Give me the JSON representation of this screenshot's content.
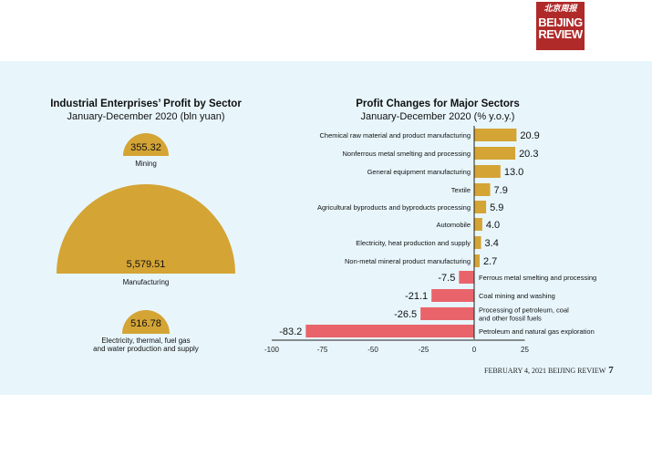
{
  "logo": {
    "cn": "北京周报",
    "en1": "BEIJING",
    "en2": "REVIEW"
  },
  "left": {
    "title": "Industrial Enterprises’ Profit by Sector",
    "subtitle": "January-December 2020 (bln yuan)",
    "items": [
      {
        "label": "Mining",
        "value": "355.32"
      },
      {
        "label": "Manufacturing",
        "value": "5,579.51"
      },
      {
        "label": "Electricity, thermal, fuel gas",
        "label2": "and water production and supply",
        "value": "516.78"
      }
    ]
  },
  "footer": {
    "text": "FEBRUARY 4, 2021 BEIJING REVIEW",
    "page": "7"
  },
  "chart_data": {
    "type": "bar",
    "orientation": "horizontal",
    "title": "Profit Changes for Major Sectors",
    "subtitle": "January-December 2020 (% y.o.y.)",
    "categories": [
      "Chemical raw material and product manufacturing",
      "Nonferrous metal smelting and processing",
      "General equipment manufacturing",
      "Textile",
      "Agricultural byproducts and byproducts processing",
      "Automobile",
      "Electricity, heat production and supply",
      "Non-metal mineral product manufacturing",
      "Ferrous metal smelting and processing",
      "Coal mining and washing",
      "Processing of petroleum, coal\nand other fossil fuels",
      "Petroleum and natural gas exploration"
    ],
    "values": [
      20.9,
      20.3,
      13.0,
      7.9,
      5.9,
      4.0,
      3.4,
      2.7,
      -7.5,
      -21.1,
      -26.5,
      -83.2
    ],
    "xlim": [
      -100,
      25
    ],
    "xticks": [
      -100,
      -75,
      -50,
      -25,
      0,
      25
    ],
    "colors": {
      "positive": "#d4a435",
      "negative": "#e9646a"
    }
  }
}
